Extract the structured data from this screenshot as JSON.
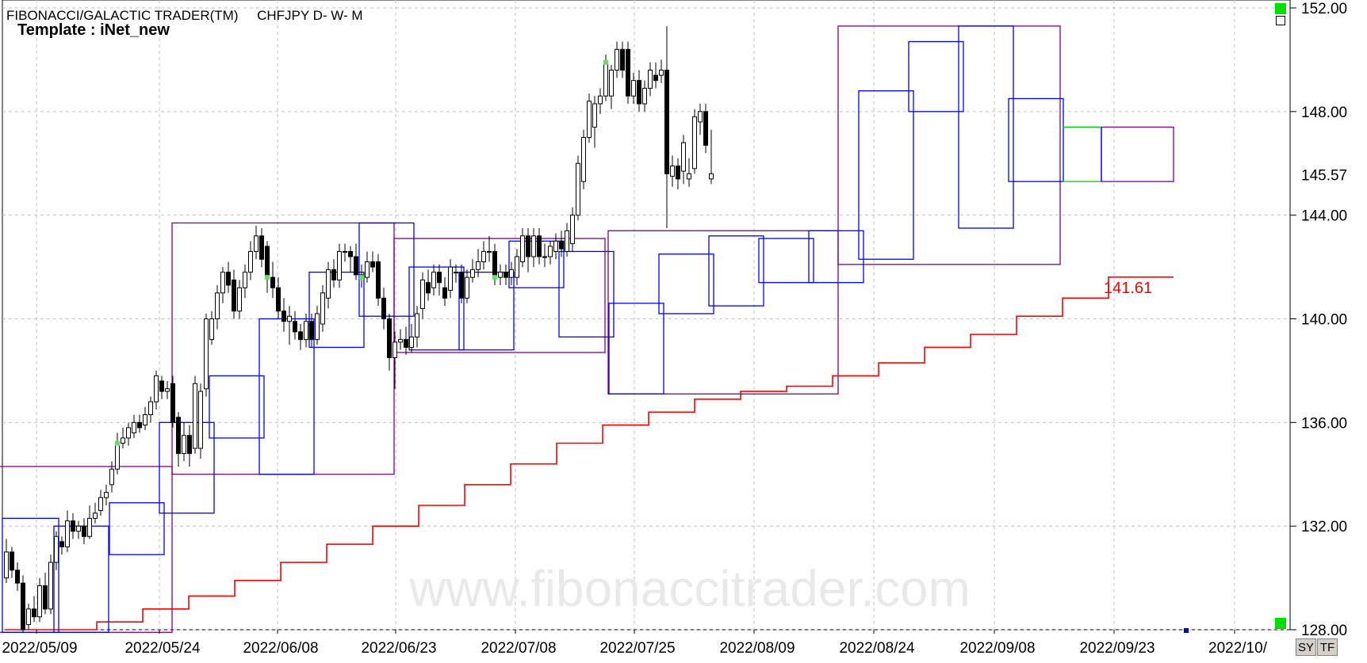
{
  "header": {
    "title": "FIBONACCI/GALACTIC TRADER(TM)",
    "symbol_info": "CHFJPY D- W- M",
    "template": "Template : iNet_new"
  },
  "buttons": {
    "sy": "SY",
    "tf": "TF"
  },
  "watermark": "www.fibonaccitrader.com",
  "colors": {
    "daily_box": "#0000ff",
    "monthly_box": "#800080",
    "stair_line": "#ff0000",
    "projection_line": "#00cc00",
    "marker": "#66dd66",
    "grid": "#c0c0c0"
  },
  "chart_data": {
    "type": "candlestick",
    "title": "CHFJPY D- W- M",
    "y_axis": {
      "min": 128,
      "max": 152,
      "ticks": [
        128.0,
        132.0,
        136.0,
        140.0,
        144.0,
        148.0,
        152.0
      ],
      "side": "right"
    },
    "x_tick_labels": [
      "2022/05/09",
      "2022/05/24",
      "2022/06/08",
      "2022/06/23",
      "2022/07/08",
      "2022/07/25",
      "2022/08/09",
      "2022/08/24",
      "2022/09/08",
      "2022/09/23",
      "2022/10/"
    ],
    "current_price_label": "145.57",
    "stair_line_label": "141.61",
    "grid": true,
    "candles": [
      [
        130.0,
        131.0,
        131.5,
        129.8
      ],
      [
        131.0,
        130.3,
        131.2,
        130.0
      ],
      [
        130.3,
        129.8,
        130.6,
        129.5
      ],
      [
        129.8,
        128.0,
        130.1,
        127.9
      ],
      [
        128.2,
        128.8,
        129.0,
        128.0
      ],
      [
        128.8,
        128.5,
        129.3,
        128.3
      ],
      [
        128.5,
        129.7,
        130.0,
        128.3
      ],
      [
        129.7,
        128.8,
        130.2,
        128.6
      ],
      [
        128.8,
        130.6,
        130.9,
        128.6
      ],
      [
        130.6,
        131.6,
        131.8,
        130.3
      ],
      [
        131.4,
        131.2,
        131.6,
        130.9
      ],
      [
        131.2,
        132.2,
        132.6,
        131.0
      ],
      [
        132.2,
        131.8,
        132.5,
        131.5
      ],
      [
        131.8,
        132.0,
        132.2,
        131.5
      ],
      [
        132.0,
        131.6,
        132.3,
        131.3
      ],
      [
        131.6,
        132.3,
        132.8,
        131.5
      ],
      [
        132.3,
        132.5,
        132.9,
        132.1
      ],
      [
        132.6,
        133.1,
        133.4,
        132.4
      ],
      [
        133.1,
        133.3,
        133.6,
        132.8
      ],
      [
        133.6,
        134.2,
        134.5,
        133.3
      ],
      [
        134.2,
        135.2,
        135.6,
        134.0
      ],
      [
        135.2,
        135.4,
        135.8,
        135.0
      ],
      [
        135.4,
        135.8,
        136.0,
        135.1
      ],
      [
        135.6,
        136.0,
        136.3,
        135.4
      ],
      [
        136.0,
        135.8,
        136.3,
        135.6
      ],
      [
        135.9,
        136.3,
        136.6,
        135.7
      ],
      [
        136.3,
        136.8,
        137.0,
        136.0
      ],
      [
        136.8,
        137.8,
        138.0,
        136.5
      ],
      [
        137.6,
        137.2,
        137.8,
        136.9
      ],
      [
        137.2,
        137.3,
        137.6,
        136.9
      ],
      [
        137.5,
        136.0,
        137.8,
        135.8
      ],
      [
        136.2,
        134.8,
        136.4,
        134.3
      ],
      [
        134.8,
        135.5,
        136.0,
        134.5
      ],
      [
        135.5,
        134.8,
        135.9,
        134.3
      ],
      [
        135.0,
        137.5,
        137.8,
        134.8
      ],
      [
        135.0,
        137.2,
        137.5,
        134.6
      ],
      [
        137.3,
        140.0,
        140.2,
        137.0
      ],
      [
        139.2,
        140.0,
        140.3,
        139.0
      ],
      [
        140.0,
        141.0,
        141.3,
        139.6
      ],
      [
        141.0,
        141.8,
        142.0,
        140.6
      ],
      [
        141.8,
        141.3,
        142.2,
        141.0
      ],
      [
        141.5,
        140.3,
        141.9,
        140.0
      ],
      [
        140.3,
        141.2,
        141.5,
        140.0
      ],
      [
        141.2,
        141.8,
        142.1,
        140.8
      ],
      [
        141.8,
        142.6,
        143.0,
        141.5
      ],
      [
        142.6,
        143.2,
        143.6,
        142.3
      ],
      [
        143.2,
        142.3,
        143.5,
        142.0
      ],
      [
        142.8,
        141.6,
        143.0,
        141.0
      ],
      [
        141.6,
        141.2,
        142.2,
        140.8
      ],
      [
        141.2,
        140.3,
        141.6,
        140.0
      ],
      [
        140.3,
        139.9,
        140.8,
        139.5
      ],
      [
        139.9,
        140.1,
        140.5,
        139.0
      ],
      [
        139.9,
        139.5,
        140.3,
        139.2
      ],
      [
        139.5,
        139.2,
        139.8,
        138.8
      ],
      [
        139.2,
        139.9,
        140.2,
        138.9
      ],
      [
        139.9,
        139.2,
        140.2,
        138.9
      ],
      [
        139.2,
        140.2,
        140.5,
        139.0
      ],
      [
        139.8,
        141.0,
        141.3,
        139.5
      ],
      [
        140.8,
        141.9,
        142.2,
        140.4
      ],
      [
        141.9,
        141.5,
        142.3,
        141.2
      ],
      [
        141.5,
        142.6,
        142.9,
        141.2
      ],
      [
        142.6,
        142.6,
        142.9,
        142.2
      ],
      [
        142.6,
        142.4,
        142.8,
        141.8
      ],
      [
        142.4,
        141.7,
        142.9,
        141.5
      ],
      [
        141.7,
        141.6,
        142.1,
        141.2
      ],
      [
        141.6,
        142.2,
        142.6,
        141.4
      ],
      [
        142.2,
        142.0,
        142.6,
        141.8
      ],
      [
        142.2,
        140.8,
        142.5,
        140.5
      ],
      [
        140.8,
        140.0,
        141.2,
        139.6
      ],
      [
        140.0,
        138.5,
        140.2,
        138.0
      ],
      [
        138.5,
        139.1,
        139.5,
        137.3
      ],
      [
        139.1,
        139.2,
        139.6,
        138.8
      ],
      [
        139.2,
        138.9,
        139.7,
        138.6
      ],
      [
        138.9,
        139.3,
        139.8,
        138.7
      ],
      [
        139.3,
        140.2,
        140.5,
        138.9
      ],
      [
        140.4,
        141.5,
        141.8,
        140.0
      ],
      [
        141.4,
        141.0,
        141.9,
        140.7
      ],
      [
        141.2,
        141.8,
        142.1,
        140.9
      ],
      [
        141.8,
        141.4,
        142.1,
        140.9
      ],
      [
        141.2,
        140.8,
        141.6,
        140.5
      ],
      [
        141.1,
        142.0,
        142.3,
        140.8
      ],
      [
        141.8,
        141.8,
        142.1,
        141.4
      ],
      [
        141.8,
        140.8,
        142.1,
        140.6
      ],
      [
        140.8,
        141.6,
        141.9,
        140.6
      ],
      [
        141.6,
        141.9,
        142.3,
        141.4
      ],
      [
        141.9,
        142.2,
        142.7,
        141.6
      ],
      [
        142.2,
        142.6,
        143.0,
        141.9
      ],
      [
        142.6,
        142.6,
        143.2,
        142.2
      ],
      [
        142.6,
        141.6,
        142.9,
        141.3
      ],
      [
        141.6,
        141.8,
        142.1,
        141.3
      ],
      [
        141.8,
        141.6,
        142.1,
        141.3
      ],
      [
        141.6,
        141.9,
        142.2,
        141.3
      ],
      [
        141.6,
        142.4,
        142.7,
        141.3
      ],
      [
        142.2,
        143.2,
        143.5,
        142.0
      ],
      [
        143.2,
        142.4,
        143.5,
        141.8
      ],
      [
        142.4,
        143.2,
        143.5,
        142.0
      ],
      [
        143.2,
        142.4,
        143.5,
        142.1
      ],
      [
        142.4,
        142.4,
        142.9,
        142.0
      ],
      [
        142.4,
        142.8,
        143.0,
        142.1
      ],
      [
        142.6,
        143.0,
        143.3,
        142.3
      ],
      [
        143.0,
        142.7,
        143.4,
        142.4
      ],
      [
        142.6,
        143.4,
        143.7,
        142.4
      ],
      [
        142.9,
        144.0,
        144.3,
        142.6
      ],
      [
        144.0,
        146.0,
        146.3,
        143.8
      ],
      [
        145.3,
        147.0,
        147.3,
        145.0
      ],
      [
        147.0,
        148.4,
        148.7,
        146.8
      ],
      [
        147.4,
        148.3,
        148.6,
        146.6
      ],
      [
        148.3,
        148.6,
        148.9,
        147.9
      ],
      [
        148.6,
        149.9,
        150.2,
        148.4
      ],
      [
        148.6,
        149.6,
        149.8,
        148.1
      ],
      [
        149.6,
        150.4,
        150.7,
        149.3
      ],
      [
        150.4,
        149.6,
        150.7,
        149.3
      ],
      [
        150.4,
        148.6,
        150.7,
        148.3
      ],
      [
        148.6,
        149.2,
        149.5,
        148.3
      ],
      [
        149.2,
        148.3,
        149.6,
        148.0
      ],
      [
        148.3,
        148.9,
        149.2,
        148.0
      ],
      [
        148.9,
        149.6,
        149.9,
        148.6
      ],
      [
        149.4,
        149.2,
        149.9,
        148.9
      ],
      [
        149.4,
        149.6,
        150.0,
        149.1
      ],
      [
        149.6,
        145.6,
        151.3,
        143.5
      ],
      [
        145.5,
        145.9,
        146.3,
        145.1
      ],
      [
        145.9,
        145.4,
        146.2,
        145.0
      ],
      [
        145.7,
        146.8,
        147.1,
        145.2
      ],
      [
        145.4,
        145.6,
        146.2,
        145.1
      ],
      [
        145.8,
        147.8,
        148.1,
        145.6
      ],
      [
        147.6,
        148.0,
        148.3,
        147.1
      ],
      [
        148.0,
        146.7,
        148.3,
        146.4
      ],
      [
        145.4,
        145.6,
        147.3,
        145.2
      ]
    ],
    "daily_boxes": [
      [
        0,
        9,
        127.9,
        132.3
      ],
      [
        9,
        18,
        127.9,
        132.0
      ],
      [
        19,
        28,
        130.9,
        132.9
      ],
      [
        28,
        37,
        132.5,
        136.0
      ],
      [
        37,
        46,
        135.4,
        137.8
      ],
      [
        46,
        55,
        134.0,
        140.0
      ],
      [
        55,
        64,
        138.9,
        141.8
      ],
      [
        64,
        73,
        140.1,
        143.7
      ],
      [
        73,
        82,
        138.8,
        142.0
      ],
      [
        82,
        91,
        138.8,
        141.8
      ],
      [
        91,
        100,
        141.2,
        143.0
      ],
      [
        100,
        109,
        139.3,
        142.6
      ],
      [
        109,
        118,
        137.1,
        140.6
      ],
      [
        118,
        127,
        140.2,
        142.5
      ],
      [
        127,
        136,
        140.5,
        143.2
      ],
      [
        136,
        145,
        141.4,
        143.1
      ],
      [
        145,
        154,
        141.4,
        143.4
      ],
      [
        154,
        163,
        142.3,
        148.8
      ],
      [
        163,
        172,
        148.0,
        150.7
      ],
      [
        172,
        181,
        143.5,
        151.3
      ],
      [
        181,
        190,
        145.3,
        148.5
      ]
    ],
    "monthly_boxes": [
      [
        -5,
        217,
        127.9,
        134.3
      ],
      [
        217,
        497,
        134.0,
        143.7
      ],
      [
        497,
        763,
        138.7,
        143.1
      ],
      [
        767,
        1057,
        137.1,
        143.4
      ],
      [
        1057,
        1337,
        142.1,
        151.3
      ]
    ],
    "projection": {
      "x0": 1340,
      "x1": 1389,
      "y_high": 147.4,
      "y_low": 145.3
    },
    "monthly_projection": [
      1389,
      1480,
      145.3,
      147.4
    ],
    "stair_line_values": [
      128.0,
      128.0,
      128.3,
      128.8,
      129.3,
      129.9,
      130.6,
      131.3,
      132.0,
      132.8,
      133.6,
      134.4,
      135.2,
      135.9,
      136.4,
      136.9,
      137.2,
      137.4,
      137.8,
      138.3,
      138.9,
      139.4,
      140.1,
      140.8,
      141.61
    ]
  }
}
